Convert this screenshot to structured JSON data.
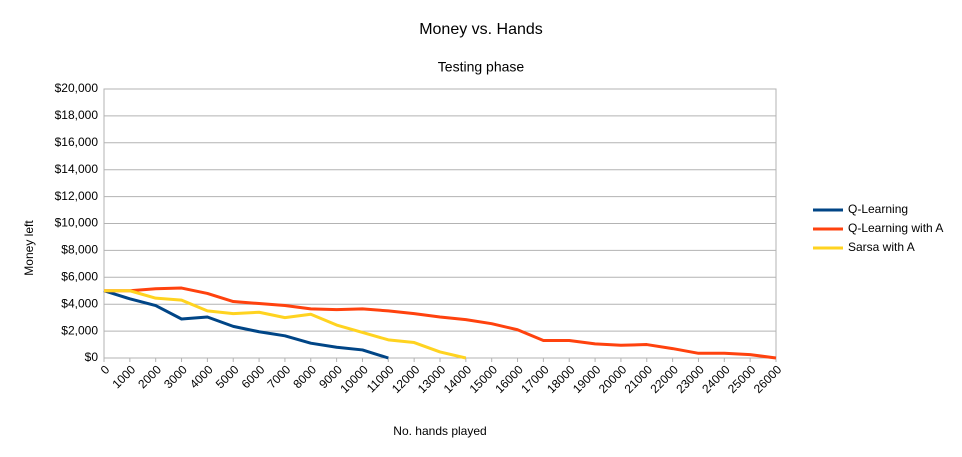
{
  "chart_data": {
    "type": "line",
    "title": "Money vs. Hands",
    "subtitle": "Testing phase",
    "x_label": "No. hands played",
    "y_label": "Money left",
    "x": [
      0,
      1000,
      2000,
      3000,
      4000,
      5000,
      6000,
      7000,
      8000,
      9000,
      10000,
      11000,
      12000,
      13000,
      14000,
      15000,
      16000,
      17000,
      18000,
      19000,
      20000,
      21000,
      22000,
      23000,
      24000,
      25000,
      26000
    ],
    "xlim": [
      0,
      26000
    ],
    "xticks": [
      0,
      1000,
      2000,
      3000,
      4000,
      5000,
      6000,
      7000,
      8000,
      9000,
      10000,
      11000,
      12000,
      13000,
      14000,
      15000,
      16000,
      17000,
      18000,
      19000,
      20000,
      21000,
      22000,
      23000,
      24000,
      25000,
      26000
    ],
    "ylim": [
      0,
      20000
    ],
    "yticks": [
      {
        "value": 0,
        "label": "$0"
      },
      {
        "value": 2000,
        "label": "$2,000"
      },
      {
        "value": 4000,
        "label": "$4,000"
      },
      {
        "value": 6000,
        "label": "$6,000"
      },
      {
        "value": 8000,
        "label": "$8,000"
      },
      {
        "value": 10000,
        "label": "$10,000"
      },
      {
        "value": 12000,
        "label": "$12,000"
      },
      {
        "value": 14000,
        "label": "$14,000"
      },
      {
        "value": 16000,
        "label": "$16,000"
      },
      {
        "value": 18000,
        "label": "$18,000"
      },
      {
        "value": 20000,
        "label": "$20,000"
      }
    ],
    "grid": true,
    "legend": "right",
    "series": [
      {
        "name": "Q-Learning",
        "color": "#004586",
        "values": [
          5000,
          4400,
          3900,
          2900,
          3050,
          2350,
          1950,
          1650,
          1100,
          800,
          600,
          0,
          null,
          null,
          null,
          null,
          null,
          null,
          null,
          null,
          null,
          null,
          null,
          null,
          null,
          null,
          null
        ]
      },
      {
        "name": "Q-Learning with A",
        "color": "#ff420e",
        "values": [
          5000,
          5000,
          5150,
          5200,
          4800,
          4200,
          4050,
          3900,
          3650,
          3600,
          3650,
          3500,
          3300,
          3050,
          2850,
          2550,
          2100,
          1300,
          1300,
          1050,
          950,
          1000,
          700,
          350,
          350,
          250,
          0
        ]
      },
      {
        "name": "Sarsa with A",
        "color": "#ffd320",
        "values": [
          5000,
          5000,
          4450,
          4300,
          3500,
          3300,
          3400,
          3000,
          3250,
          2450,
          1900,
          1350,
          1150,
          450,
          0,
          null,
          null,
          null,
          null,
          null,
          null,
          null,
          null,
          null,
          null,
          null,
          null
        ]
      }
    ]
  }
}
